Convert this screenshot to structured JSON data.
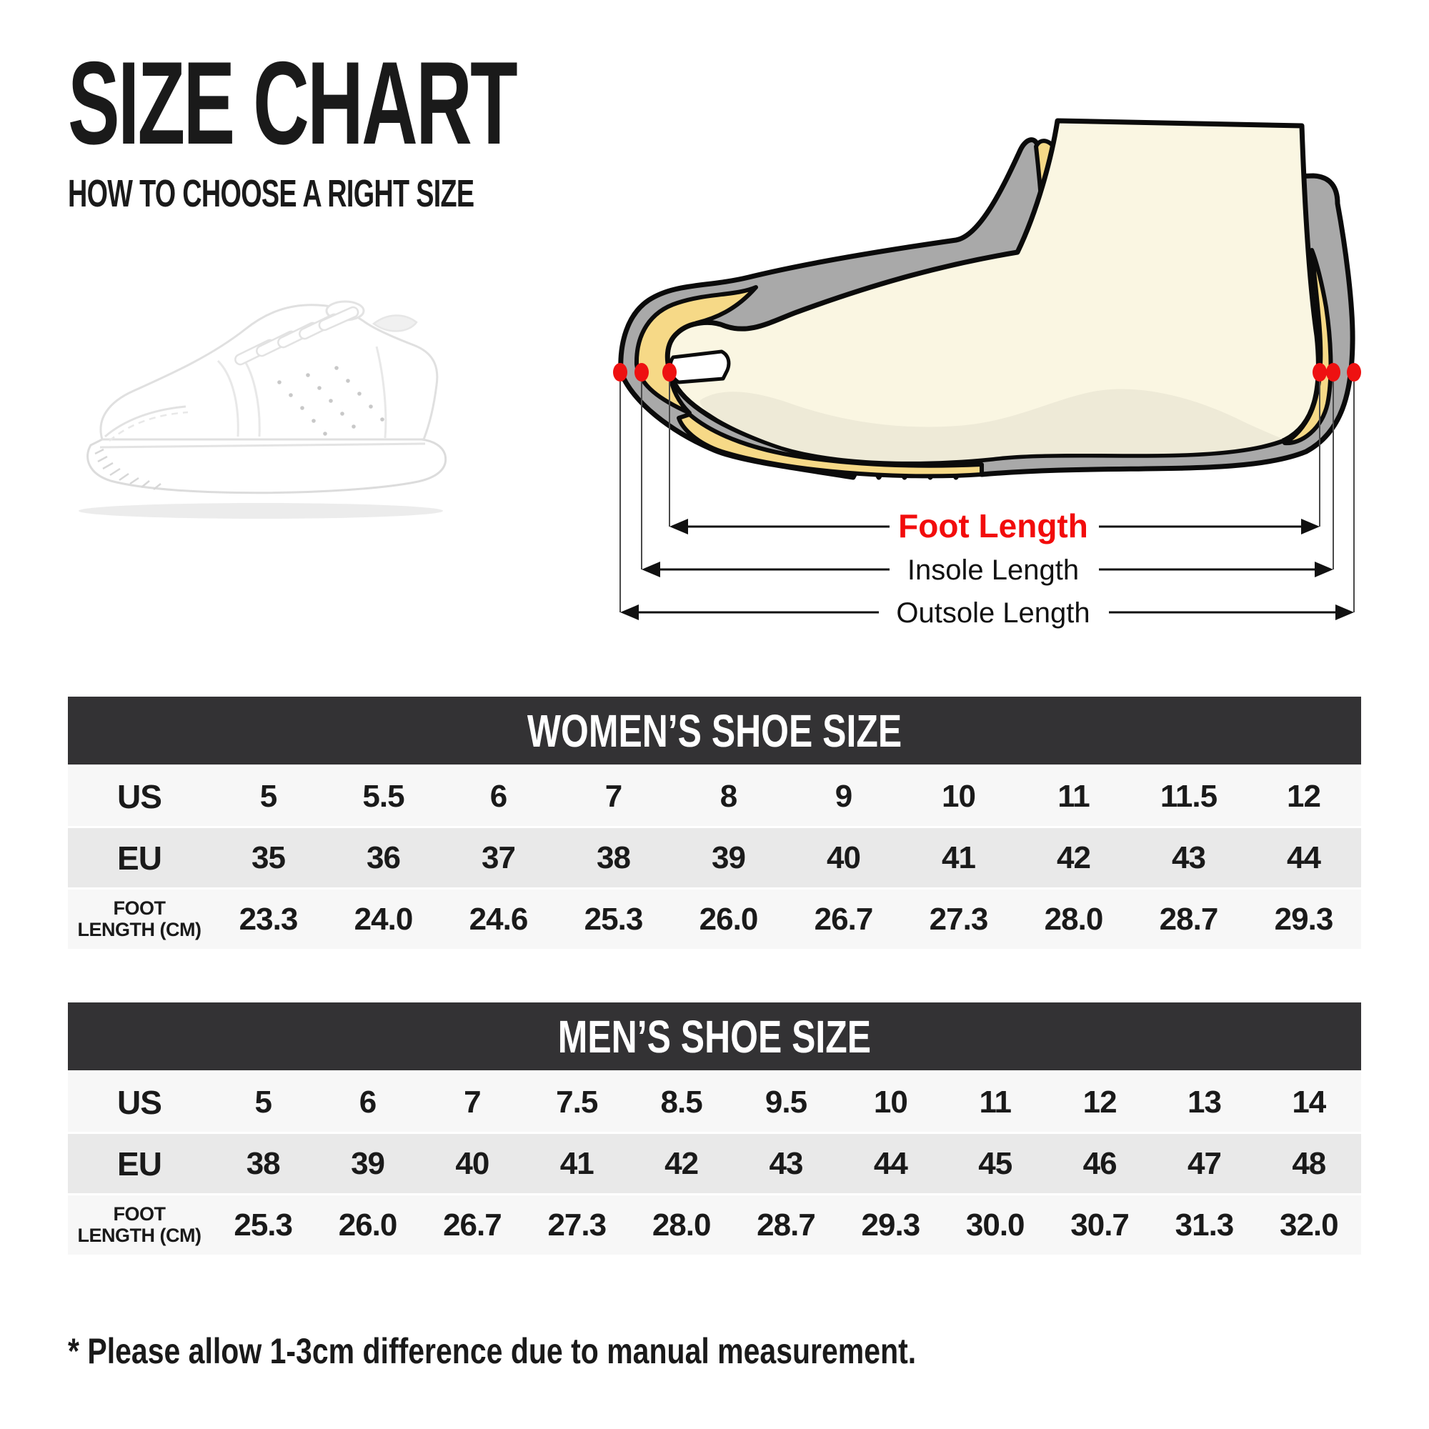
{
  "header": {
    "title": "SIZE CHART",
    "subtitle": "HOW TO CHOOSE A RIGHT SIZE"
  },
  "diagram": {
    "foot_length_label": "Foot Length",
    "insole_length_label": "Insole Length",
    "outsole_length_label": "Outsole Length",
    "colors": {
      "shoe_gray": "#a9a9a9",
      "insole_yellow": "#f6d987",
      "foot_cream": "#faf6e2",
      "foot_shadow": "#eeead7",
      "marker_red": "#ee1111",
      "outline_black": "#0b0b0b"
    }
  },
  "tables": [
    {
      "title": "WOMEN’S SHOE SIZE",
      "rows": [
        {
          "label_lines": [
            "US"
          ],
          "values": [
            "5",
            "5.5",
            "6",
            "7",
            "8",
            "9",
            "10",
            "11",
            "11.5",
            "12"
          ]
        },
        {
          "label_lines": [
            "EU"
          ],
          "values": [
            "35",
            "36",
            "37",
            "38",
            "39",
            "40",
            "41",
            "42",
            "43",
            "44"
          ]
        },
        {
          "label_lines": [
            "FOOT",
            "LENGTH (CM)"
          ],
          "values": [
            "23.3",
            "24.0",
            "24.6",
            "25.3",
            "26.0",
            "26.7",
            "27.3",
            "28.0",
            "28.7",
            "29.3"
          ]
        }
      ]
    },
    {
      "title": "MEN’S SHOE SIZE",
      "rows": [
        {
          "label_lines": [
            "US"
          ],
          "values": [
            "5",
            "6",
            "7",
            "7.5",
            "8.5",
            "9.5",
            "10",
            "11",
            "12",
            "13",
            "14"
          ]
        },
        {
          "label_lines": [
            "EU"
          ],
          "values": [
            "38",
            "39",
            "40",
            "41",
            "42",
            "43",
            "44",
            "45",
            "46",
            "47",
            "48"
          ]
        },
        {
          "label_lines": [
            "FOOT",
            "LENGTH (CM)"
          ],
          "values": [
            "25.3",
            "26.0",
            "26.7",
            "27.3",
            "28.0",
            "28.7",
            "29.3",
            "30.0",
            "30.7",
            "31.3",
            "32.0"
          ]
        }
      ]
    }
  ],
  "table_style": {
    "header_bar_color": "#333234",
    "row_light_color": "#f7f7f7",
    "row_shaded_color": "#e9e9e9"
  },
  "footnote": "* Please allow 1-3cm difference due to manual measurement."
}
